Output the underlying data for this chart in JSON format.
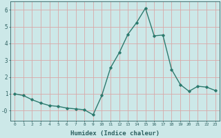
{
  "x": [
    0,
    1,
    2,
    3,
    4,
    5,
    6,
    7,
    8,
    9,
    10,
    11,
    12,
    13,
    14,
    15,
    16,
    17,
    18,
    19,
    20,
    21,
    22,
    23
  ],
  "y": [
    1.0,
    0.9,
    0.65,
    0.45,
    0.3,
    0.25,
    0.15,
    0.1,
    0.05,
    -0.25,
    0.9,
    2.55,
    3.45,
    4.55,
    5.25,
    6.1,
    4.45,
    4.5,
    2.45,
    1.55,
    1.15,
    1.45,
    1.4,
    1.2
  ],
  "xlabel": "Humidex (Indice chaleur)",
  "bg_color": "#cce8e8",
  "line_color": "#2d7a6e",
  "grid_color": "#d8a8a8",
  "axis_color": "#2d6060",
  "ylim": [
    -0.6,
    6.5
  ],
  "xlim": [
    -0.5,
    23.5
  ],
  "yticks": [
    0,
    1,
    2,
    3,
    4,
    5,
    6
  ],
  "ytick_labels": [
    "-0",
    "1",
    "2",
    "3",
    "4",
    "5",
    "6"
  ],
  "xticks": [
    0,
    1,
    2,
    3,
    4,
    5,
    6,
    7,
    8,
    9,
    10,
    11,
    12,
    13,
    14,
    15,
    16,
    17,
    18,
    19,
    20,
    21,
    22,
    23
  ]
}
